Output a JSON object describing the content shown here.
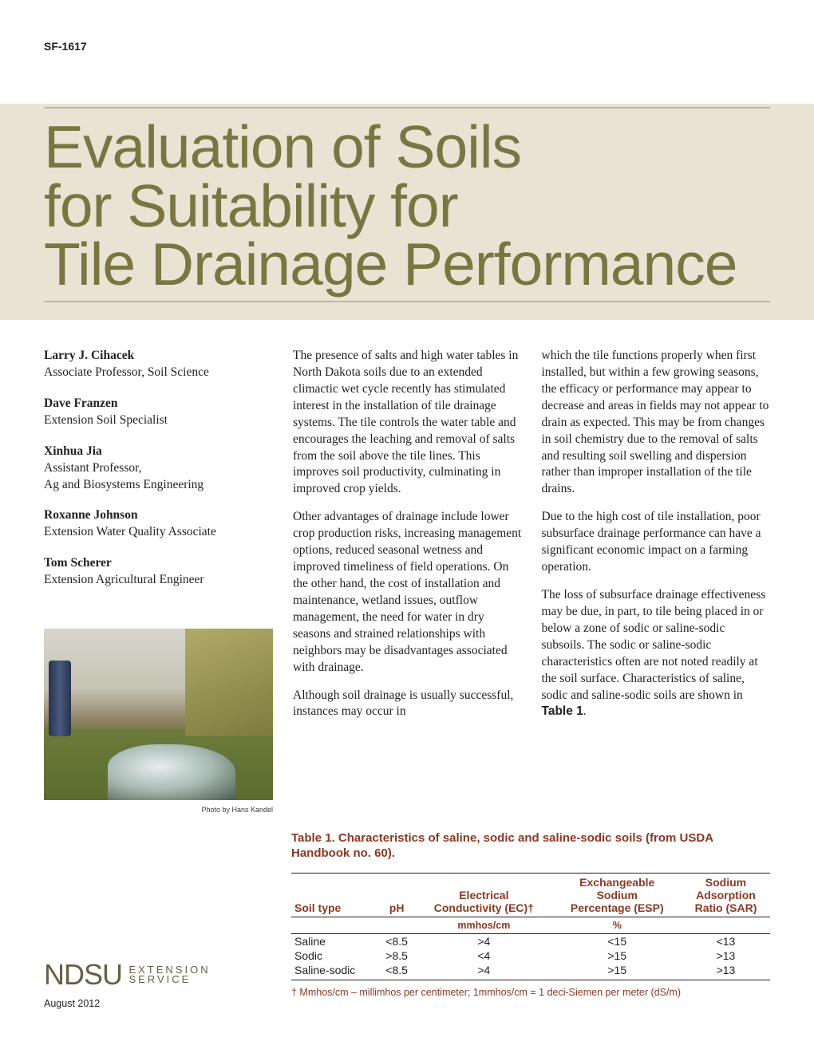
{
  "doc_id": "SF-1617",
  "title_lines": [
    "Evaluation of Soils",
    "for Suitability for",
    "Tile Drainage Performance"
  ],
  "title_color": "#7b7542",
  "band_color": "#eae3d4",
  "rule_color": "#bfb79e",
  "authors": [
    {
      "name": "Larry J. Cihacek",
      "role": "Associate Professor, Soil Science"
    },
    {
      "name": "Dave Franzen",
      "role": "Extension Soil Specialist"
    },
    {
      "name": "Xinhua Jia",
      "role": "Assistant Professor,\nAg and Biosystems Engineering"
    },
    {
      "name": "Roxanne Johnson",
      "role": "Extension Water Quality Associate"
    },
    {
      "name": "Tom Scherer",
      "role": "Extension Agricultural Engineer"
    }
  ],
  "photo_credit": "Photo by Hans Kandel",
  "body": {
    "p1": "The presence of salts and high water tables in North Dakota soils due to an extended climactic wet cycle recently has stimulated interest in the installation of tile drainage systems. The tile controls the water table and encourages the leaching and removal of salts from the soil above the tile lines. This improves soil productivity, culminating in improved crop yields.",
    "p2": "Other advantages of drainage include lower crop production risks, increasing management options, reduced seasonal wetness and improved timeliness of field operations. On the other hand, the cost of installation and maintenance, wetland issues, outflow management, the need for water in dry seasons and strained relationships with neighbors may be disadvantages associated with drainage.",
    "p3a": "Although soil drainage is usually successful, instances may occur in",
    "p3b": "which the tile functions properly when first installed, but within a few growing seasons, the efficacy or performance may appear to decrease and areas in fields may not appear to drain as expected. This may be from changes in soil chemistry due to the removal of salts and resulting soil swelling and dispersion rather than improper installation of the tile drains.",
    "p4": "Due to the high cost of tile installation, poor subsurface drainage performance can have a significant economic impact on a farming operation.",
    "p5a": "The loss of subsurface drainage effectiveness may be due, in part, to tile being placed in or below a zone of sodic or saline-sodic subsoils. The sodic or saline-sodic characteristics often are not noted readily at the soil surface. Characteristics of saline, sodic and saline-sodic soils are shown in ",
    "p5b": "Table 1",
    "p5c": "."
  },
  "table": {
    "title": "Table 1.  Characteristics of saline, sodic and saline-sodic soils (from USDA Handbook no. 60).",
    "title_color": "#8c3822",
    "columns": [
      "Soil type",
      "pH",
      "Electrical\nConductivity (EC)†",
      "Exchangeable\nSodium\nPercentage (ESP)",
      "Sodium\nAdsorption\nRatio (SAR)"
    ],
    "unit_row": [
      "",
      "",
      "mmhos/cm",
      "%",
      ""
    ],
    "rows": [
      [
        "Saline",
        "<8.5",
        ">4",
        "<15",
        "<13"
      ],
      [
        "Sodic",
        ">8.5",
        "<4",
        ">15",
        ">13"
      ],
      [
        "Saline-sodic",
        "<8.5",
        ">4",
        ">15",
        ">13"
      ]
    ],
    "footnote": "† Mmhos/cm – millimhos per centimeter; 1mmhos/cm = 1 deci-Siemen per meter (dS/m)"
  },
  "logo": {
    "main": "NDSU",
    "ext_line1": "EXTENSION",
    "ext_line2": "SERVICE",
    "color": "#685f45"
  },
  "pub_date": "August 2012"
}
